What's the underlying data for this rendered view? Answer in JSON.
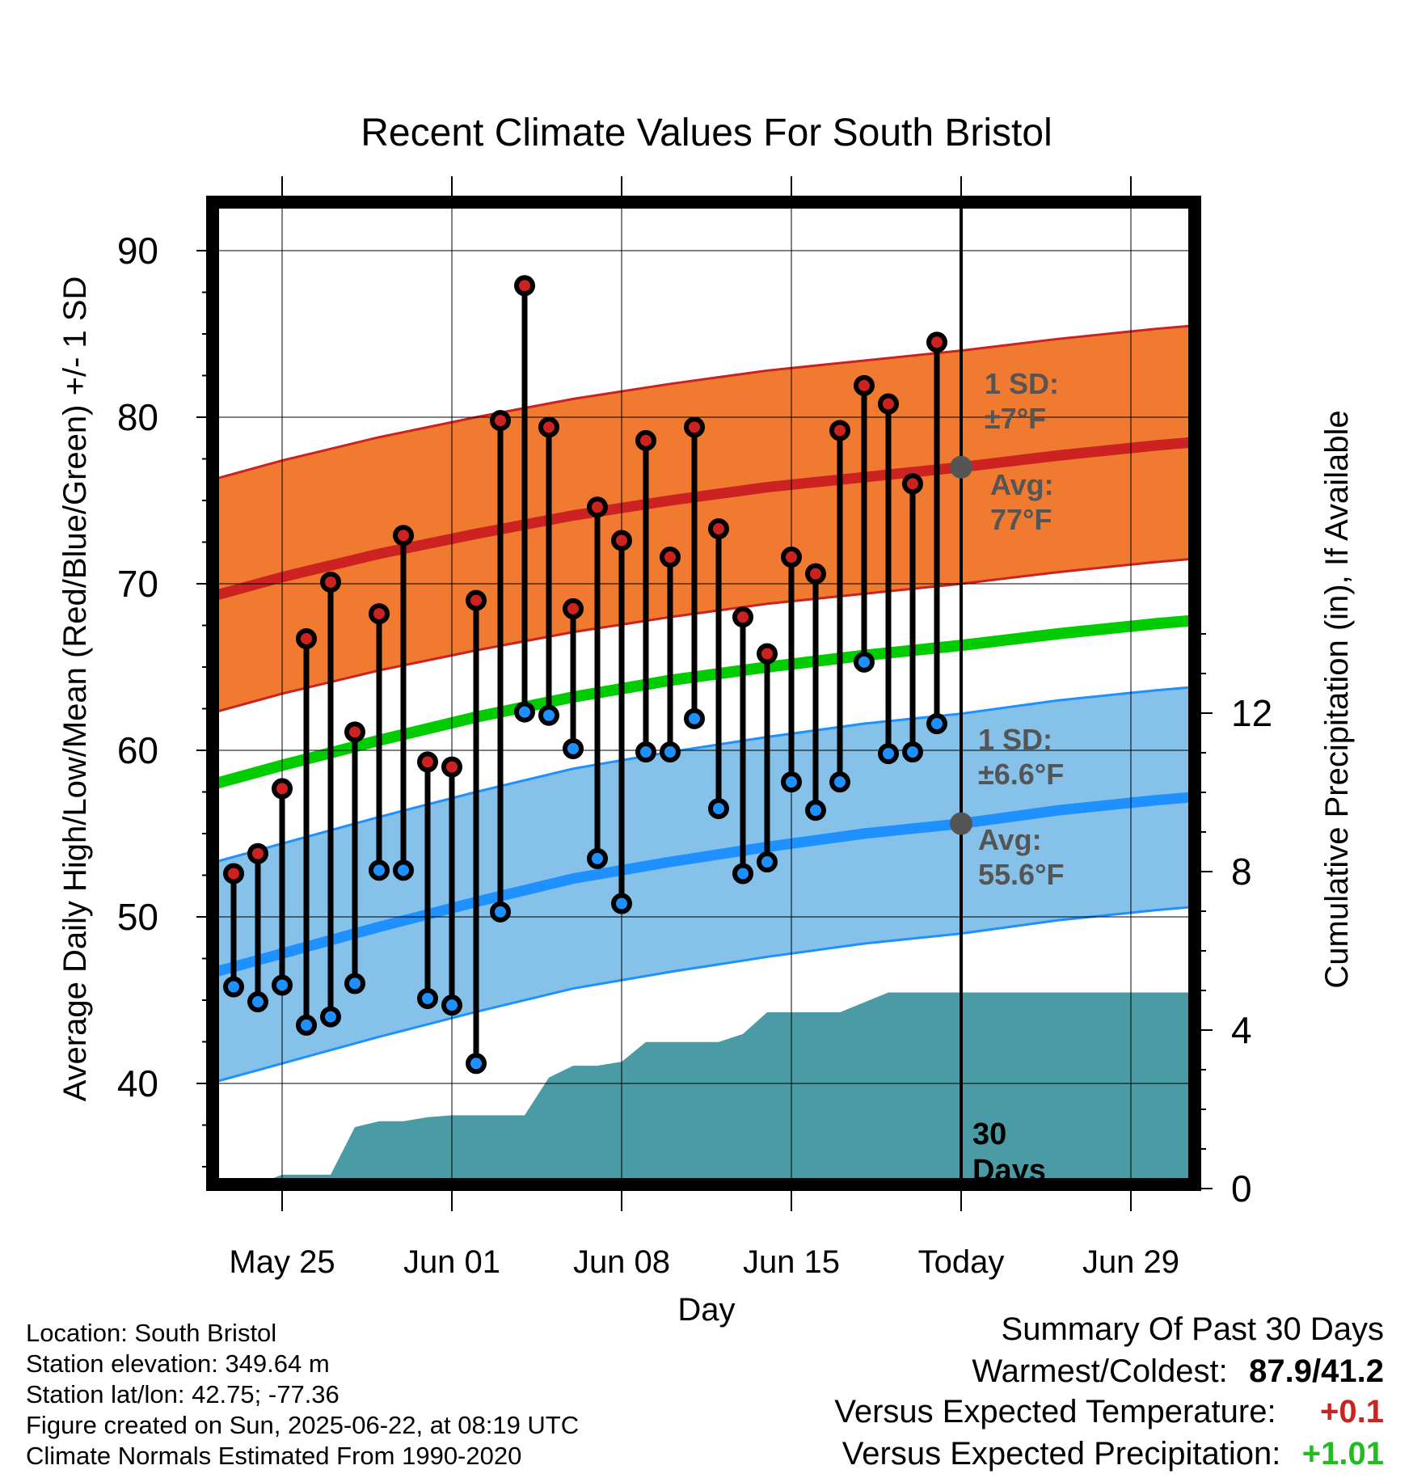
{
  "chart_data": {
    "type": "line",
    "title": "Recent Climate Values For South Bristol",
    "xlabel": "Day",
    "ylabel": "Average Daily High/Low/Mean (Red/Blue/Green) +/- 1 SD",
    "y2label": "Cumulative Precipitation (in), If Available",
    "xlim": [
      -3.5,
      43
    ],
    "ylim": [
      34.5,
      91
    ],
    "y2lim": [
      0,
      15.6
    ],
    "x_ticks": [
      {
        "x": 0,
        "label": "May 25"
      },
      {
        "x": 7,
        "label": "Jun 01"
      },
      {
        "x": 14,
        "label": "Jun 08"
      },
      {
        "x": 21,
        "label": "Jun 15"
      },
      {
        "x": 28,
        "label": "Today"
      },
      {
        "x": 35,
        "label": "Jun 29"
      }
    ],
    "y_ticks": [
      40,
      50,
      60,
      70,
      80,
      90
    ],
    "y2_ticks": [
      0,
      4,
      8,
      12
    ],
    "grid": true,
    "days_x": [
      -2,
      -1,
      0,
      1,
      2,
      3,
      4,
      5,
      6,
      7,
      8,
      9,
      10,
      11,
      12,
      13,
      14,
      15,
      16,
      17,
      18,
      19,
      20,
      21,
      22,
      23,
      24,
      25,
      26,
      27
    ],
    "series": [
      {
        "name": "High",
        "color": "#cc2222",
        "values": [
          52.6,
          53.8,
          57.7,
          66.7,
          70.1,
          61.1,
          68.2,
          72.9,
          59.3,
          59.0,
          69.0,
          79.8,
          87.9,
          79.4,
          68.5,
          74.6,
          72.6,
          78.6,
          71.6,
          79.4,
          73.3,
          68.0,
          65.8,
          71.6,
          70.6,
          79.2,
          81.9,
          80.8,
          76.0,
          84.5
        ]
      },
      {
        "name": "Low",
        "color": "#1e90ff",
        "values": [
          45.8,
          44.9,
          45.9,
          43.5,
          44.0,
          46.0,
          52.8,
          52.8,
          45.1,
          44.7,
          41.2,
          50.3,
          62.3,
          62.1,
          60.1,
          53.5,
          50.8,
          59.9,
          59.9,
          61.9,
          56.5,
          52.6,
          53.3,
          58.1,
          56.4,
          58.1,
          65.3,
          59.8,
          59.9,
          61.6
        ]
      }
    ],
    "normals": {
      "x": [
        -3,
        0,
        4,
        8,
        12,
        16,
        20,
        24,
        28,
        32,
        36,
        40
      ],
      "high_avg": [
        69.2,
        70.4,
        71.8,
        73.0,
        74.1,
        75.0,
        75.8,
        76.4,
        77.0,
        77.7,
        78.3,
        78.8
      ],
      "low_avg": [
        46.6,
        47.8,
        49.4,
        50.9,
        52.3,
        53.3,
        54.2,
        55.0,
        55.6,
        56.4,
        57.0,
        57.5
      ],
      "mean_avg": [
        57.9,
        59.1,
        60.6,
        62.0,
        63.2,
        64.2,
        65.0,
        65.7,
        66.3,
        67.0,
        67.6,
        68.1
      ],
      "high_sd": 7,
      "low_sd": 6.6
    },
    "precip_cumulative": {
      "x": [
        -3,
        -1.5,
        0,
        2,
        3,
        4,
        5,
        6,
        7,
        8,
        9,
        10,
        11,
        12,
        13,
        14,
        15,
        16,
        17,
        18,
        19,
        20,
        21,
        22,
        23,
        24,
        25,
        26,
        27,
        28,
        43
      ],
      "values": [
        0.0,
        0.0,
        0.35,
        0.35,
        1.55,
        1.7,
        1.7,
        1.8,
        1.85,
        1.85,
        1.85,
        1.85,
        2.8,
        3.1,
        3.1,
        3.2,
        3.7,
        3.7,
        3.7,
        3.7,
        3.9,
        4.45,
        4.45,
        4.45,
        4.45,
        4.7,
        4.95,
        4.95,
        4.95,
        4.95,
        4.95
      ]
    },
    "annotations": [
      {
        "text": "1 SD:",
        "text2": "±7°F",
        "color": "#555555"
      },
      {
        "text": "Avg:",
        "text2": "77°F",
        "color": "#555555"
      },
      {
        "text": "1 SD:",
        "text2": "±6.6°F",
        "color": "#555555"
      },
      {
        "text": "Avg:",
        "text2": "55.6°F",
        "color": "#555555"
      },
      {
        "text": "30",
        "text2": "Days",
        "color": "#000000"
      }
    ],
    "colors": {
      "high_band": "#f07a30",
      "high_line": "#cc2222",
      "low_band": "#85c1e9",
      "low_line": "#1e90ff",
      "mean_line": "#00cc00",
      "precip": "#4a9ba5",
      "today_dot": "#555555"
    }
  },
  "info": {
    "location": "Location: South Bristol",
    "elevation": "Station elevation: 349.64 m",
    "latlon": "Station lat/lon: 42.75; -77.36",
    "created": "Figure created on Sun, 2025-06-22, at 08:19 UTC",
    "normals": "Climate Normals Estimated From 1990-2020"
  },
  "summary": {
    "title": "Summary Of Past 30 Days",
    "warmest_label": "Warmest/Coldest:",
    "warmest_value": "87.9/41.2",
    "temp_label": "Versus Expected Temperature:",
    "temp_value": "+0.1",
    "temp_color": "#cc2222",
    "precip_label": "Versus Expected Precipitation:",
    "precip_value": "+1.01",
    "precip_color": "#22bb22"
  }
}
